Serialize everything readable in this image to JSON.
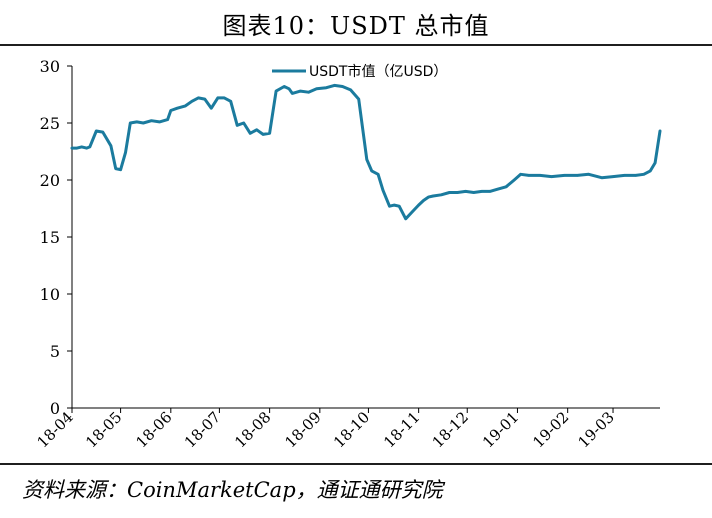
{
  "title": "图表10：USDT 总市值",
  "source": "资料来源：CoinMarketCap，通证通研究院",
  "colors": {
    "line": "#1b7b9e",
    "axis": "#000000"
  },
  "chart_data": {
    "type": "line",
    "title": "图表10：USDT 总市值",
    "xlabel": "",
    "ylabel": "",
    "ylim": [
      0,
      30
    ],
    "yticks": [
      0,
      5,
      10,
      15,
      20,
      25,
      30
    ],
    "xticks": [
      "18-04",
      "18-05",
      "18-06",
      "18-07",
      "18-08",
      "18-09",
      "18-10",
      "18-11",
      "18-12",
      "19-01",
      "19-02",
      "19-03"
    ],
    "grid": false,
    "legend": "top-center",
    "series": [
      {
        "name": "USDT市值（亿USD）",
        "x": [
          "2018-04-01",
          "2018-04-04",
          "2018-04-07",
          "2018-04-10",
          "2018-04-12",
          "2018-04-16",
          "2018-04-20",
          "2018-04-25",
          "2018-04-28",
          "2018-05-01",
          "2018-05-04",
          "2018-05-07",
          "2018-05-11",
          "2018-05-15",
          "2018-05-20",
          "2018-05-25",
          "2018-05-30",
          "2018-06-01",
          "2018-06-05",
          "2018-06-10",
          "2018-06-14",
          "2018-06-18",
          "2018-06-22",
          "2018-06-26",
          "2018-06-30",
          "2018-07-04",
          "2018-07-08",
          "2018-07-12",
          "2018-07-16",
          "2018-07-20",
          "2018-07-24",
          "2018-07-28",
          "2018-08-01",
          "2018-08-05",
          "2018-08-10",
          "2018-08-13",
          "2018-08-15",
          "2018-08-20",
          "2018-08-25",
          "2018-08-30",
          "2018-09-05",
          "2018-09-10",
          "2018-09-15",
          "2018-09-20",
          "2018-09-25",
          "2018-09-30",
          "2018-10-03",
          "2018-10-07",
          "2018-10-10",
          "2018-10-14",
          "2018-10-17",
          "2018-10-20",
          "2018-10-24",
          "2018-10-28",
          "2018-11-01",
          "2018-11-04",
          "2018-11-07",
          "2018-11-10",
          "2018-11-15",
          "2018-11-20",
          "2018-11-25",
          "2018-11-30",
          "2018-12-05",
          "2018-12-10",
          "2018-12-15",
          "2018-12-20",
          "2018-12-25",
          "2018-12-30",
          "2019-01-03",
          "2019-01-08",
          "2019-01-15",
          "2019-01-22",
          "2019-01-30",
          "2019-02-07",
          "2019-02-14",
          "2019-02-22",
          "2019-03-01",
          "2019-03-08",
          "2019-03-15",
          "2019-03-20",
          "2019-03-24",
          "2019-03-27",
          "2019-03-30"
        ],
        "values": [
          22.8,
          22.8,
          22.9,
          22.8,
          22.9,
          24.3,
          24.2,
          23.0,
          21.0,
          20.9,
          22.4,
          25.0,
          25.1,
          25.0,
          25.2,
          25.1,
          25.3,
          26.1,
          26.3,
          26.5,
          26.9,
          27.2,
          27.1,
          26.3,
          27.2,
          27.2,
          26.9,
          24.8,
          25.0,
          24.1,
          24.4,
          24.0,
          24.1,
          27.8,
          28.2,
          28.0,
          27.6,
          27.8,
          27.7,
          28.0,
          28.1,
          28.3,
          28.2,
          27.9,
          27.1,
          21.8,
          20.8,
          20.5,
          19.1,
          17.7,
          17.8,
          17.7,
          16.6,
          17.2,
          17.8,
          18.2,
          18.5,
          18.6,
          18.7,
          18.9,
          18.9,
          19.0,
          18.9,
          19.0,
          19.0,
          19.2,
          19.4,
          20.0,
          20.5,
          20.4,
          20.4,
          20.3,
          20.4,
          20.4,
          20.5,
          20.2,
          20.3,
          20.4,
          20.4,
          20.5,
          20.8,
          21.5,
          24.3
        ]
      }
    ]
  }
}
